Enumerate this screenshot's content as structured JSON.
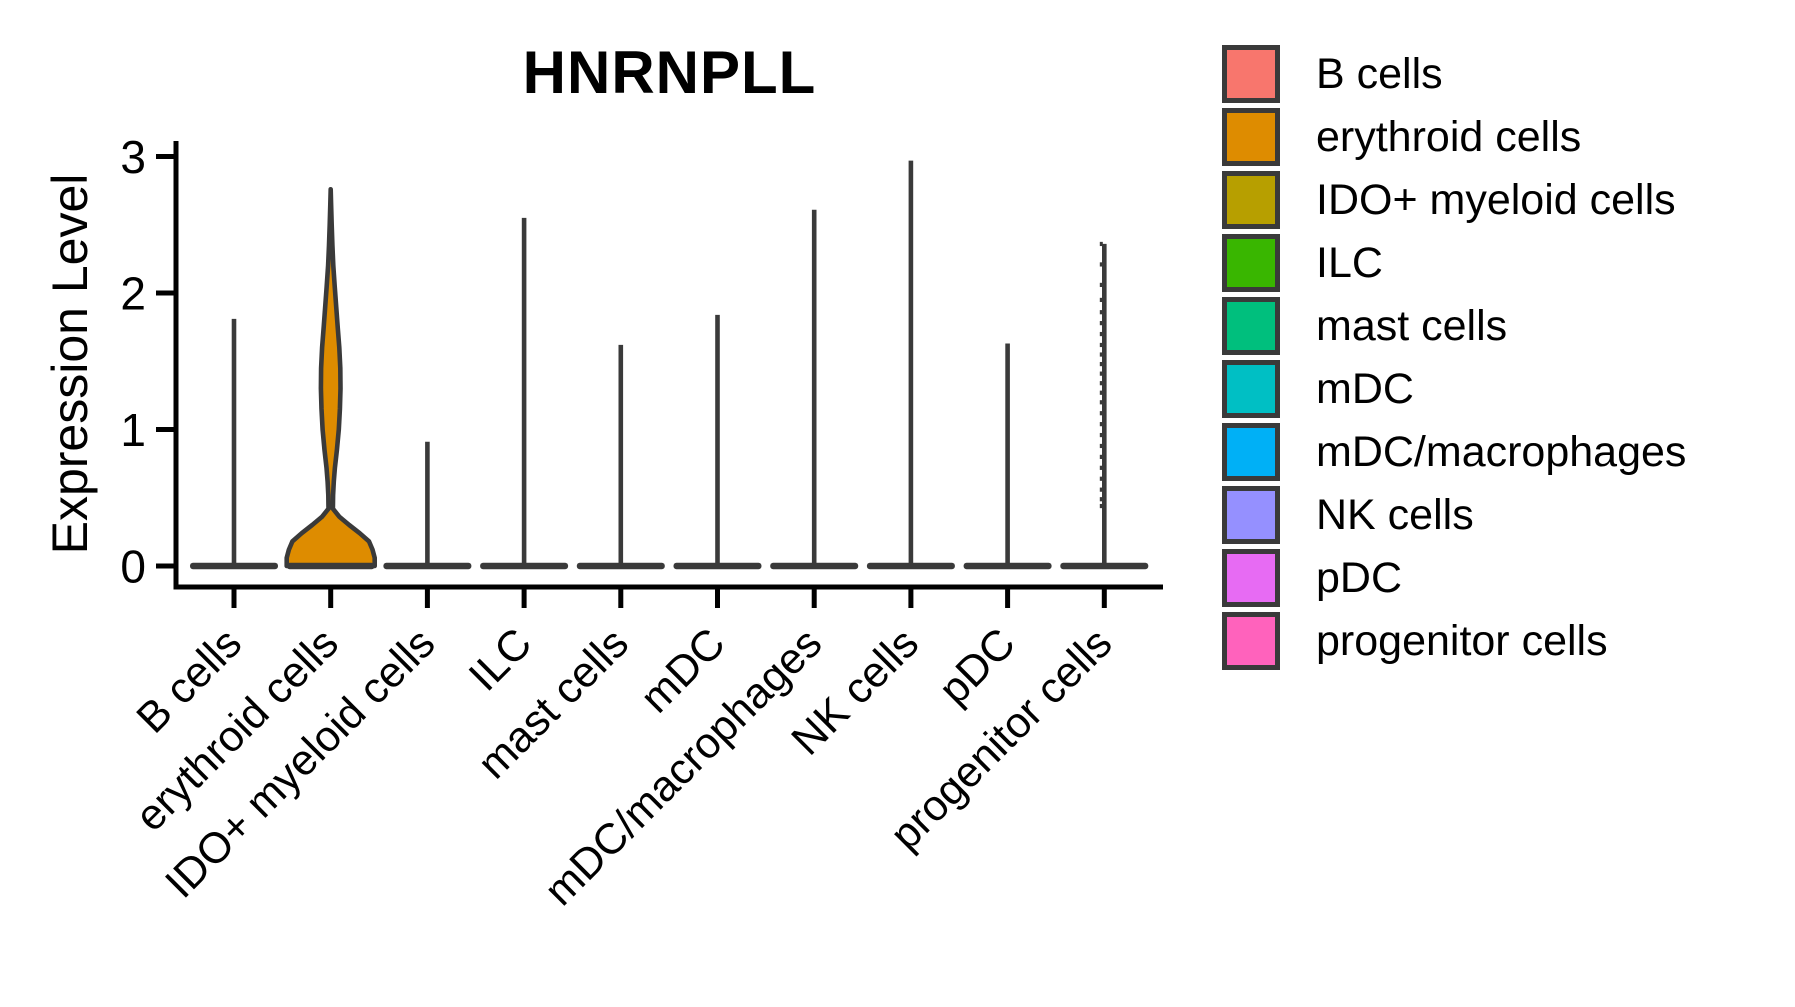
{
  "title": "HNRNPLL",
  "y_axis_title": "Expression Level",
  "chart_data": {
    "type": "violin",
    "title": "HNRNPLL",
    "xlabel": "",
    "ylabel": "Expression Level",
    "ylim": [
      0,
      3
    ],
    "y_ticks": [
      0,
      1,
      2,
      3
    ],
    "grid": false,
    "legend_position": "right",
    "categories": [
      "B cells",
      "erythroid cells",
      "IDO+ myeloid cells",
      "ILC",
      "mast cells",
      "mDC",
      "mDC/macrophages",
      "NK cells",
      "pDC",
      "progenitor cells"
    ],
    "colors": [
      "#F8766D",
      "#DE8C00",
      "#B79F00",
      "#39B600",
      "#00BF7D",
      "#00BFC4",
      "#00B0F6",
      "#9590FF",
      "#E76BF3",
      "#FF62BC"
    ],
    "outline_color": "#3a3a3a",
    "axis_color": "#000000",
    "violins": [
      {
        "category": "B cells",
        "color": "#F8766D",
        "max_expression": 1.81,
        "mass_at_zero": true
      },
      {
        "category": "erythroid cells",
        "color": "#DE8C00",
        "max_expression": 2.76,
        "mass_at_zero": true,
        "profile": [
          [
            0.0,
            1.0
          ],
          [
            0.06,
            1.0
          ],
          [
            0.12,
            0.95
          ],
          [
            0.18,
            0.87
          ],
          [
            0.24,
            0.66
          ],
          [
            0.3,
            0.42
          ],
          [
            0.36,
            0.2
          ],
          [
            0.42,
            0.05
          ],
          [
            0.52,
            0.055
          ],
          [
            0.62,
            0.07
          ],
          [
            0.72,
            0.095
          ],
          [
            0.85,
            0.14
          ],
          [
            1.0,
            0.185
          ],
          [
            1.15,
            0.21
          ],
          [
            1.3,
            0.222
          ],
          [
            1.45,
            0.218
          ],
          [
            1.6,
            0.195
          ],
          [
            1.75,
            0.16
          ],
          [
            1.9,
            0.125
          ],
          [
            2.05,
            0.09
          ],
          [
            2.2,
            0.06
          ],
          [
            2.35,
            0.038
          ],
          [
            2.5,
            0.022
          ],
          [
            2.65,
            0.008
          ],
          [
            2.76,
            0.0
          ]
        ]
      },
      {
        "category": "IDO+ myeloid cells",
        "color": "#B79F00",
        "max_expression": 0.91,
        "mass_at_zero": true
      },
      {
        "category": "ILC",
        "color": "#39B600",
        "max_expression": 2.55,
        "mass_at_zero": true
      },
      {
        "category": "mast cells",
        "color": "#00BF7D",
        "max_expression": 1.62,
        "mass_at_zero": true
      },
      {
        "category": "mDC",
        "color": "#00BFC4",
        "max_expression": 1.84,
        "mass_at_zero": true
      },
      {
        "category": "mDC/macrophages",
        "color": "#00B0F6",
        "max_expression": 2.61,
        "mass_at_zero": true
      },
      {
        "category": "NK cells",
        "color": "#9590FF",
        "max_expression": 2.97,
        "mass_at_zero": true
      },
      {
        "category": "pDC",
        "color": "#E76BF3",
        "max_expression": 1.63,
        "mass_at_zero": true
      },
      {
        "category": "progenitor cells",
        "color": "#FF62BC",
        "max_expression": 2.36,
        "mass_at_zero": true,
        "points": [
          2.36,
          2.21,
          2.06,
          1.95,
          1.86,
          1.78,
          1.7,
          1.62,
          1.55,
          1.48,
          1.41,
          1.34,
          1.27,
          1.2,
          1.12,
          1.04,
          0.96,
          0.88,
          0.8,
          0.72,
          0.64,
          0.56,
          0.49,
          0.44
        ]
      }
    ],
    "legend_entries": [
      "B cells",
      "erythroid cells",
      "IDO+ myeloid cells",
      "ILC",
      "mast cells",
      "mDC",
      "mDC/macrophages",
      "NK cells",
      "pDC",
      "progenitor cells"
    ]
  }
}
